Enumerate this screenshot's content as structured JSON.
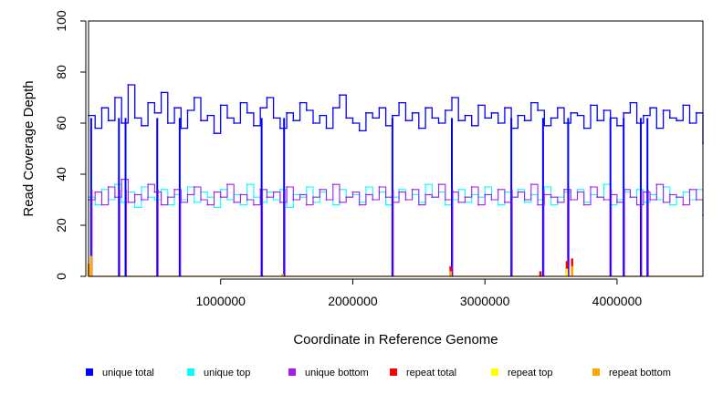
{
  "chart_data": {
    "type": "line",
    "title": "",
    "xlabel": "Coordinate in Reference Genome",
    "ylabel": "Read Coverage Depth",
    "xlim": [
      0,
      4650000
    ],
    "ylim": [
      0,
      100
    ],
    "xticks": [
      1000000,
      2000000,
      3000000,
      4000000
    ],
    "xtick_labels": [
      "1000000",
      "2000000",
      "3000000",
      "4000000"
    ],
    "yticks": [
      0,
      20,
      40,
      60,
      80,
      100
    ],
    "ytick_labels": [
      "0",
      "20",
      "40",
      "60",
      "80",
      "100"
    ],
    "grid": false,
    "legend_position": "bottom",
    "legend": [
      {
        "name": "unique total",
        "color": "#0000ff"
      },
      {
        "name": "unique top",
        "color": "#00ffff"
      },
      {
        "name": "unique bottom",
        "color": "#a020f0"
      },
      {
        "name": "repeat total",
        "color": "#ff0000"
      },
      {
        "name": "repeat top",
        "color": "#ffff00"
      },
      {
        "name": "repeat bottom",
        "color": "#ffa500"
      }
    ],
    "series": [
      {
        "name": "unique total",
        "color": "#0000ff",
        "x": [
          0,
          50000,
          100000,
          150000,
          200000,
          250000,
          300000,
          350000,
          400000,
          450000,
          500000,
          550000,
          600000,
          650000,
          700000,
          750000,
          800000,
          850000,
          900000,
          950000,
          1000000,
          1050000,
          1100000,
          1150000,
          1200000,
          1250000,
          1300000,
          1350000,
          1400000,
          1450000,
          1500000,
          1550000,
          1600000,
          1650000,
          1700000,
          1750000,
          1800000,
          1850000,
          1900000,
          1950000,
          2000000,
          2050000,
          2100000,
          2150000,
          2200000,
          2250000,
          2300000,
          2350000,
          2400000,
          2450000,
          2500000,
          2550000,
          2600000,
          2650000,
          2700000,
          2750000,
          2800000,
          2850000,
          2900000,
          2950000,
          3000000,
          3050000,
          3100000,
          3150000,
          3200000,
          3250000,
          3300000,
          3350000,
          3400000,
          3450000,
          3500000,
          3550000,
          3600000,
          3650000,
          3700000,
          3750000,
          3800000,
          3850000,
          3900000,
          3950000,
          4000000,
          4050000,
          4100000,
          4150000,
          4200000,
          4250000,
          4300000,
          4350000,
          4400000,
          4450000,
          4500000,
          4550000,
          4600000,
          4650000
        ],
        "values": [
          63,
          58,
          66,
          61,
          70,
          60,
          75,
          62,
          59,
          68,
          64,
          72,
          60,
          66,
          58,
          65,
          70,
          61,
          63,
          56,
          67,
          62,
          60,
          68,
          64,
          59,
          66,
          70,
          62,
          58,
          64,
          61,
          68,
          65,
          60,
          63,
          58,
          66,
          71,
          62,
          60,
          57,
          64,
          62,
          66,
          59,
          63,
          68,
          61,
          64,
          58,
          66,
          62,
          60,
          65,
          70,
          61,
          63,
          59,
          67,
          62,
          64,
          60,
          66,
          58,
          63,
          61,
          68,
          65,
          59,
          62,
          66,
          60,
          64,
          63,
          58,
          67,
          61,
          65,
          62,
          59,
          64,
          68,
          60,
          63,
          66,
          58,
          65,
          62,
          61,
          67,
          60,
          64,
          52
        ]
      },
      {
        "name": "unique top",
        "color": "#00ffff",
        "x": [
          0,
          50000,
          100000,
          150000,
          200000,
          250000,
          300000,
          350000,
          400000,
          450000,
          500000,
          550000,
          600000,
          650000,
          700000,
          750000,
          800000,
          850000,
          900000,
          950000,
          1000000,
          1050000,
          1100000,
          1150000,
          1200000,
          1250000,
          1300000,
          1350000,
          1400000,
          1450000,
          1500000,
          1550000,
          1600000,
          1650000,
          1700000,
          1750000,
          1800000,
          1850000,
          1900000,
          1950000,
          2000000,
          2050000,
          2100000,
          2150000,
          2200000,
          2250000,
          2300000,
          2350000,
          2400000,
          2450000,
          2500000,
          2550000,
          2600000,
          2650000,
          2700000,
          2750000,
          2800000,
          2850000,
          2900000,
          2950000,
          3000000,
          3050000,
          3100000,
          3150000,
          3200000,
          3250000,
          3300000,
          3350000,
          3400000,
          3450000,
          3500000,
          3550000,
          3600000,
          3650000,
          3700000,
          3750000,
          3800000,
          3850000,
          3900000,
          3950000,
          4000000,
          4050000,
          4100000,
          4150000,
          4200000,
          4250000,
          4300000,
          4350000,
          4400000,
          4450000,
          4500000,
          4550000,
          4600000,
          4650000
        ],
        "values": [
          31,
          28,
          34,
          30,
          36,
          29,
          33,
          27,
          35,
          31,
          30,
          34,
          28,
          32,
          30,
          35,
          29,
          33,
          31,
          27,
          34,
          30,
          32,
          28,
          36,
          31,
          29,
          33,
          30,
          34,
          27,
          32,
          31,
          35,
          29,
          33,
          30,
          28,
          34,
          31,
          32,
          29,
          35,
          30,
          33,
          28,
          31,
          34,
          30,
          32,
          29,
          36,
          31,
          33,
          28,
          30,
          34,
          29,
          32,
          31,
          35,
          30,
          28,
          33,
          31,
          34,
          29,
          32,
          30,
          35,
          28,
          31,
          33,
          30,
          34,
          29,
          32,
          31,
          36,
          28,
          30,
          33,
          31,
          34,
          29,
          32,
          30,
          35,
          28,
          31,
          33,
          30,
          34,
          26
        ]
      },
      {
        "name": "unique bottom",
        "color": "#a020f0",
        "x": [
          0,
          50000,
          100000,
          150000,
          200000,
          250000,
          300000,
          350000,
          400000,
          450000,
          500000,
          550000,
          600000,
          650000,
          700000,
          750000,
          800000,
          850000,
          900000,
          950000,
          1000000,
          1050000,
          1100000,
          1150000,
          1200000,
          1250000,
          1300000,
          1350000,
          1400000,
          1450000,
          1500000,
          1550000,
          1600000,
          1650000,
          1700000,
          1750000,
          1800000,
          1850000,
          1900000,
          1950000,
          2000000,
          2050000,
          2100000,
          2150000,
          2200000,
          2250000,
          2300000,
          2350000,
          2400000,
          2450000,
          2500000,
          2550000,
          2600000,
          2650000,
          2700000,
          2750000,
          2800000,
          2850000,
          2900000,
          2950000,
          3000000,
          3050000,
          3100000,
          3150000,
          3200000,
          3250000,
          3300000,
          3350000,
          3400000,
          3450000,
          3500000,
          3550000,
          3600000,
          3650000,
          3700000,
          3750000,
          3800000,
          3850000,
          3900000,
          3950000,
          4000000,
          4050000,
          4100000,
          4150000,
          4200000,
          4250000,
          4300000,
          4350000,
          4400000,
          4450000,
          4500000,
          4550000,
          4600000,
          4650000
        ],
        "values": [
          30,
          33,
          28,
          35,
          31,
          38,
          29,
          32,
          30,
          36,
          33,
          28,
          31,
          34,
          29,
          32,
          35,
          30,
          28,
          33,
          31,
          36,
          29,
          32,
          30,
          28,
          34,
          31,
          33,
          29,
          35,
          30,
          32,
          28,
          31,
          34,
          30,
          36,
          29,
          31,
          33,
          28,
          32,
          30,
          35,
          31,
          29,
          33,
          30,
          34,
          28,
          32,
          31,
          36,
          30,
          33,
          29,
          31,
          35,
          28,
          32,
          30,
          34,
          29,
          31,
          33,
          30,
          36,
          28,
          32,
          31,
          29,
          34,
          30,
          33,
          28,
          35,
          31,
          30,
          32,
          29,
          34,
          31,
          28,
          33,
          30,
          36,
          29,
          32,
          31,
          28,
          34,
          30,
          24
        ]
      },
      {
        "name": "repeat total",
        "color": "#ff0000",
        "x": [
          1470000,
          2740000,
          3420000,
          3620000,
          3660000
        ],
        "values": [
          1,
          4,
          2,
          6,
          7
        ]
      },
      {
        "name": "repeat top",
        "color": "#ffff00",
        "x": [
          2740000,
          3620000
        ],
        "values": [
          2,
          3
        ]
      },
      {
        "name": "repeat bottom",
        "color": "#ffa500",
        "x": [
          0,
          20000,
          1470000,
          2740000,
          3660000
        ],
        "values": [
          5,
          8,
          1,
          2,
          4
        ]
      }
    ],
    "coverage_drops": [
      20000,
      230000,
      280000,
      520000,
      690000,
      1310000,
      1480000,
      2300000,
      2750000,
      3200000,
      3440000,
      3630000,
      3950000,
      4050000,
      4180000,
      4230000
    ]
  }
}
